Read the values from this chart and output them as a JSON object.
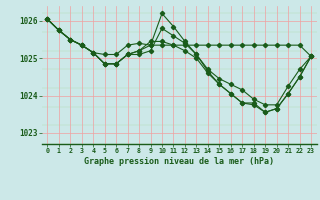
{
  "title": "Graphe pression niveau de la mer (hPa)",
  "bg_color": "#cce8e8",
  "plot_bg_color": "#cce8e8",
  "line_color": "#1a5c1a",
  "xlim": [
    -0.5,
    23.5
  ],
  "ylim": [
    1022.7,
    1026.4
  ],
  "yticks": [
    1023,
    1024,
    1025,
    1026
  ],
  "xticks": [
    0,
    1,
    2,
    3,
    4,
    5,
    6,
    7,
    8,
    9,
    10,
    11,
    12,
    13,
    14,
    15,
    16,
    17,
    18,
    19,
    20,
    21,
    22,
    23
  ],
  "series": [
    [
      1026.05,
      1025.75,
      1025.5,
      1025.35,
      1025.15,
      1025.1,
      1025.1,
      1025.35,
      1025.4,
      1025.35,
      1025.35,
      1025.35,
      1025.35,
      1025.35,
      1025.35,
      1025.35,
      1025.35,
      1025.35,
      1025.35,
      1025.35,
      1025.35,
      1025.35,
      1025.35,
      1025.05
    ],
    [
      1026.05,
      1025.75,
      1025.5,
      1025.35,
      1025.15,
      1024.85,
      1024.85,
      1025.1,
      1025.2,
      1025.35,
      1026.2,
      1025.85,
      1025.45,
      1025.1,
      1024.65,
      1024.3,
      1024.05,
      1023.8,
      1023.75,
      1023.55,
      1023.65,
      1024.05,
      1024.5,
      1025.05
    ],
    [
      1026.05,
      1025.75,
      1025.5,
      1025.35,
      1025.15,
      1024.85,
      1024.85,
      1025.1,
      1025.2,
      1025.45,
      1025.45,
      1025.35,
      1025.2,
      1025.0,
      1024.6,
      1024.3,
      1024.05,
      1023.8,
      1023.8,
      1023.55,
      1023.65,
      1024.05,
      1024.5,
      1025.05
    ],
    [
      1026.05,
      1025.75,
      1025.5,
      1025.35,
      1025.15,
      1024.85,
      1024.85,
      1025.1,
      1025.1,
      1025.2,
      1025.8,
      1025.6,
      1025.4,
      1025.1,
      1024.7,
      1024.45,
      1024.3,
      1024.15,
      1023.9,
      1023.75,
      1023.75,
      1024.25,
      1024.7,
      1025.05
    ]
  ]
}
